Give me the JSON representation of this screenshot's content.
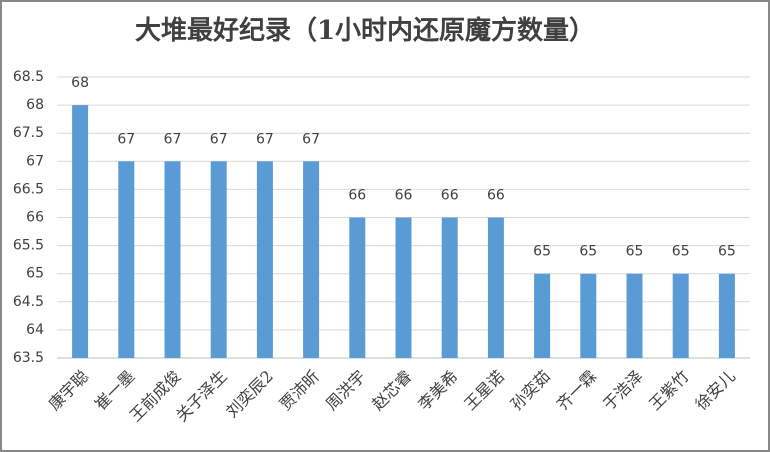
{
  "chart_data": {
    "type": "bar",
    "title": "大堆最好纪录（1小时内还原魔方数量）",
    "categories": [
      "康宇聪",
      "崔一墨",
      "王前成俊",
      "关子泽生",
      "刘奕辰2",
      "贾沛昕",
      "周洪宇",
      "赵芯睿",
      "李美希",
      "王星诺",
      "孙奕茹",
      "齐一霖",
      "于浩泽",
      "王紫竹",
      "徐安儿"
    ],
    "values": [
      68,
      67,
      67,
      67,
      67,
      67,
      66,
      66,
      66,
      66,
      65,
      65,
      65,
      65,
      65
    ],
    "color": "#5b9bd5",
    "ylim": [
      63.5,
      68.5
    ],
    "yticks": [
      63.5,
      64,
      64.5,
      65,
      65.5,
      66,
      66.5,
      67,
      67.5,
      68,
      68.5
    ],
    "grid": true
  }
}
